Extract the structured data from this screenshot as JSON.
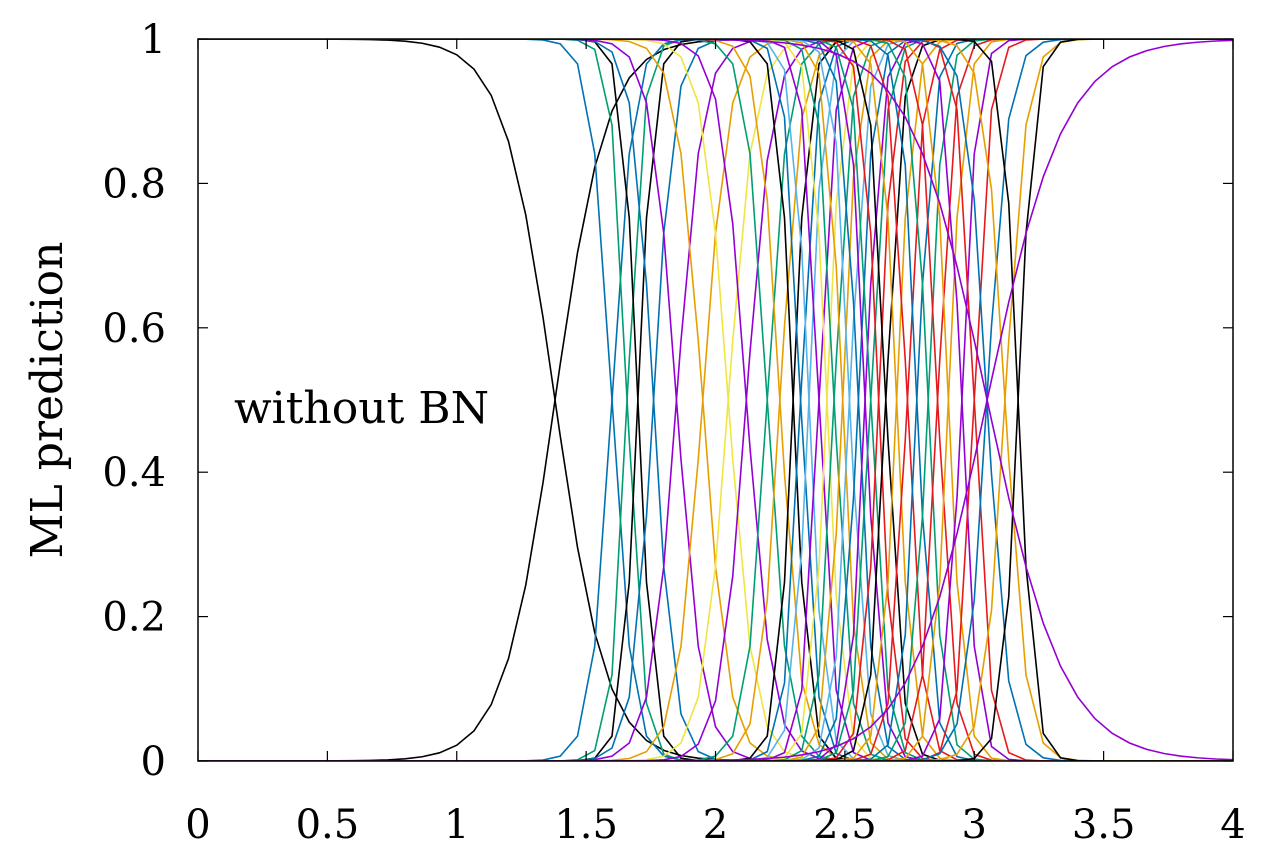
{
  "chart_data": {
    "type": "line",
    "title": "",
    "xlabel": "",
    "ylabel": "ML prediction",
    "xlim": [
      0,
      4
    ],
    "ylim": [
      0,
      1
    ],
    "xticks": [
      {
        "value": 0,
        "label": "0"
      },
      {
        "value": 0.5,
        "label": "0.5"
      },
      {
        "value": 1,
        "label": "1"
      },
      {
        "value": 1.5,
        "label": "1.5"
      },
      {
        "value": 2,
        "label": "2"
      },
      {
        "value": 2.5,
        "label": "2.5"
      },
      {
        "value": 3,
        "label": "3"
      },
      {
        "value": 3.5,
        "label": "3.5"
      },
      {
        "value": 4,
        "label": "4"
      }
    ],
    "yticks": [
      {
        "value": 0,
        "label": "0"
      },
      {
        "value": 0.2,
        "label": "0.2"
      },
      {
        "value": 0.4,
        "label": "0.4"
      },
      {
        "value": 0.6,
        "label": "0.6"
      },
      {
        "value": 0.8,
        "label": "0.8"
      },
      {
        "value": 1,
        "label": "1"
      }
    ],
    "grid": false,
    "legend": "none",
    "annotation": {
      "text": "without BN",
      "x": 0.14,
      "y": 0.49
    },
    "colors": [
      "#000000",
      "#0072b2",
      "#009e73",
      "#e69f00",
      "#9400d3",
      "#f0e442",
      "#e41a1c",
      "#56b4e9"
    ],
    "pair_transitions": [
      {
        "midpoint": 1.38,
        "width": 0.1,
        "color": "#000000"
      },
      {
        "midpoint": 1.6,
        "width": 0.04,
        "color": "#0072b2"
      },
      {
        "midpoint": 1.66,
        "width": 0.03,
        "color": "#009e73"
      },
      {
        "midpoint": 1.7,
        "width": 0.03,
        "color": "#000000"
      },
      {
        "midpoint": 1.76,
        "width": 0.04,
        "color": "#0072b2"
      },
      {
        "midpoint": 1.85,
        "width": 0.05,
        "color": "#9400d3"
      },
      {
        "midpoint": 1.95,
        "width": 0.05,
        "color": "#e69f00"
      },
      {
        "midpoint": 2.05,
        "width": 0.05,
        "color": "#f0e442"
      },
      {
        "midpoint": 2.12,
        "width": 0.05,
        "color": "#9400d3"
      },
      {
        "midpoint": 2.2,
        "width": 0.04,
        "color": "#009e73"
      },
      {
        "midpoint": 2.25,
        "width": 0.04,
        "color": "#e69f00"
      },
      {
        "midpoint": 2.3,
        "width": 0.03,
        "color": "#000000"
      },
      {
        "midpoint": 2.33,
        "width": 0.03,
        "color": "#0072b2"
      },
      {
        "midpoint": 2.36,
        "width": 0.03,
        "color": "#56b4e9"
      },
      {
        "midpoint": 2.4,
        "width": 0.03,
        "color": "#9400d3"
      },
      {
        "midpoint": 2.43,
        "width": 0.03,
        "color": "#f0e442"
      },
      {
        "midpoint": 2.46,
        "width": 0.03,
        "color": "#009e73"
      },
      {
        "midpoint": 2.49,
        "width": 0.03,
        "color": "#e69f00"
      },
      {
        "midpoint": 2.52,
        "width": 0.03,
        "color": "#56b4e9"
      },
      {
        "midpoint": 2.55,
        "width": 0.03,
        "color": "#0072b2"
      },
      {
        "midpoint": 2.58,
        "width": 0.03,
        "color": "#9400d3"
      },
      {
        "midpoint": 2.6,
        "width": 0.03,
        "color": "#009e73"
      },
      {
        "midpoint": 2.63,
        "width": 0.03,
        "color": "#e41a1c"
      },
      {
        "midpoint": 2.66,
        "width": 0.03,
        "color": "#000000"
      },
      {
        "midpoint": 2.7,
        "width": 0.03,
        "color": "#e69f00"
      },
      {
        "midpoint": 2.74,
        "width": 0.03,
        "color": "#e41a1c"
      },
      {
        "midpoint": 2.78,
        "width": 0.03,
        "color": "#0072b2"
      },
      {
        "midpoint": 2.82,
        "width": 0.03,
        "color": "#009e73"
      },
      {
        "midpoint": 2.86,
        "width": 0.03,
        "color": "#e41a1c"
      },
      {
        "midpoint": 2.9,
        "width": 0.03,
        "color": "#e69f00"
      },
      {
        "midpoint": 2.95,
        "width": 0.03,
        "color": "#9400d3"
      },
      {
        "midpoint": 3.0,
        "width": 0.03,
        "color": "#e41a1c"
      },
      {
        "midpoint": 3.05,
        "width": 0.04,
        "color": "#0072b2"
      },
      {
        "midpoint": 3.12,
        "width": 0.04,
        "color": "#e69f00"
      },
      {
        "midpoint": 3.17,
        "width": 0.03,
        "color": "#000000"
      },
      {
        "midpoint": 3.05,
        "width": 0.15,
        "color": "#9400d3"
      }
    ]
  }
}
